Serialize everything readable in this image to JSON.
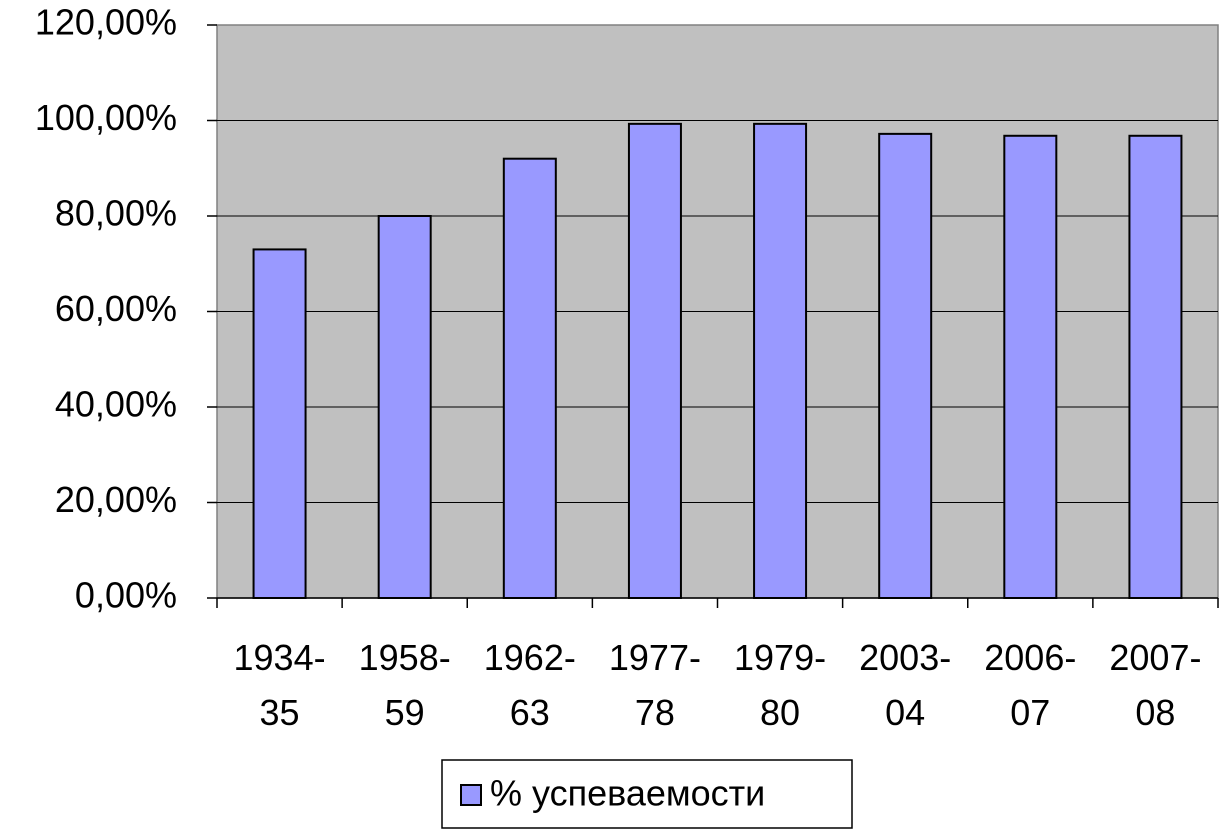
{
  "chart_data": {
    "type": "bar",
    "categories": [
      "1934-35",
      "1958-59",
      "1962-63",
      "1977-78",
      "1979-80",
      "2003-04",
      "2006-07",
      "2007-08"
    ],
    "series": [
      {
        "name": "% успеваемости",
        "color": "#9999ff",
        "values": [
          73,
          80,
          92,
          99.3,
          99.3,
          97.2,
          96.8,
          96.8
        ]
      }
    ],
    "ylim": [
      0,
      120
    ],
    "yticks": [
      {
        "value": 0,
        "label": "0,00%"
      },
      {
        "value": 20,
        "label": "20,00%"
      },
      {
        "value": 40,
        "label": "40,00%"
      },
      {
        "value": 60,
        "label": "60,00%"
      },
      {
        "value": 80,
        "label": "80,00%"
      },
      {
        "value": 100,
        "label": "100,00%"
      },
      {
        "value": 120,
        "label": "120,00%"
      }
    ],
    "grid": true,
    "legend": "bottom",
    "plot_background": "#c0c0c0"
  }
}
